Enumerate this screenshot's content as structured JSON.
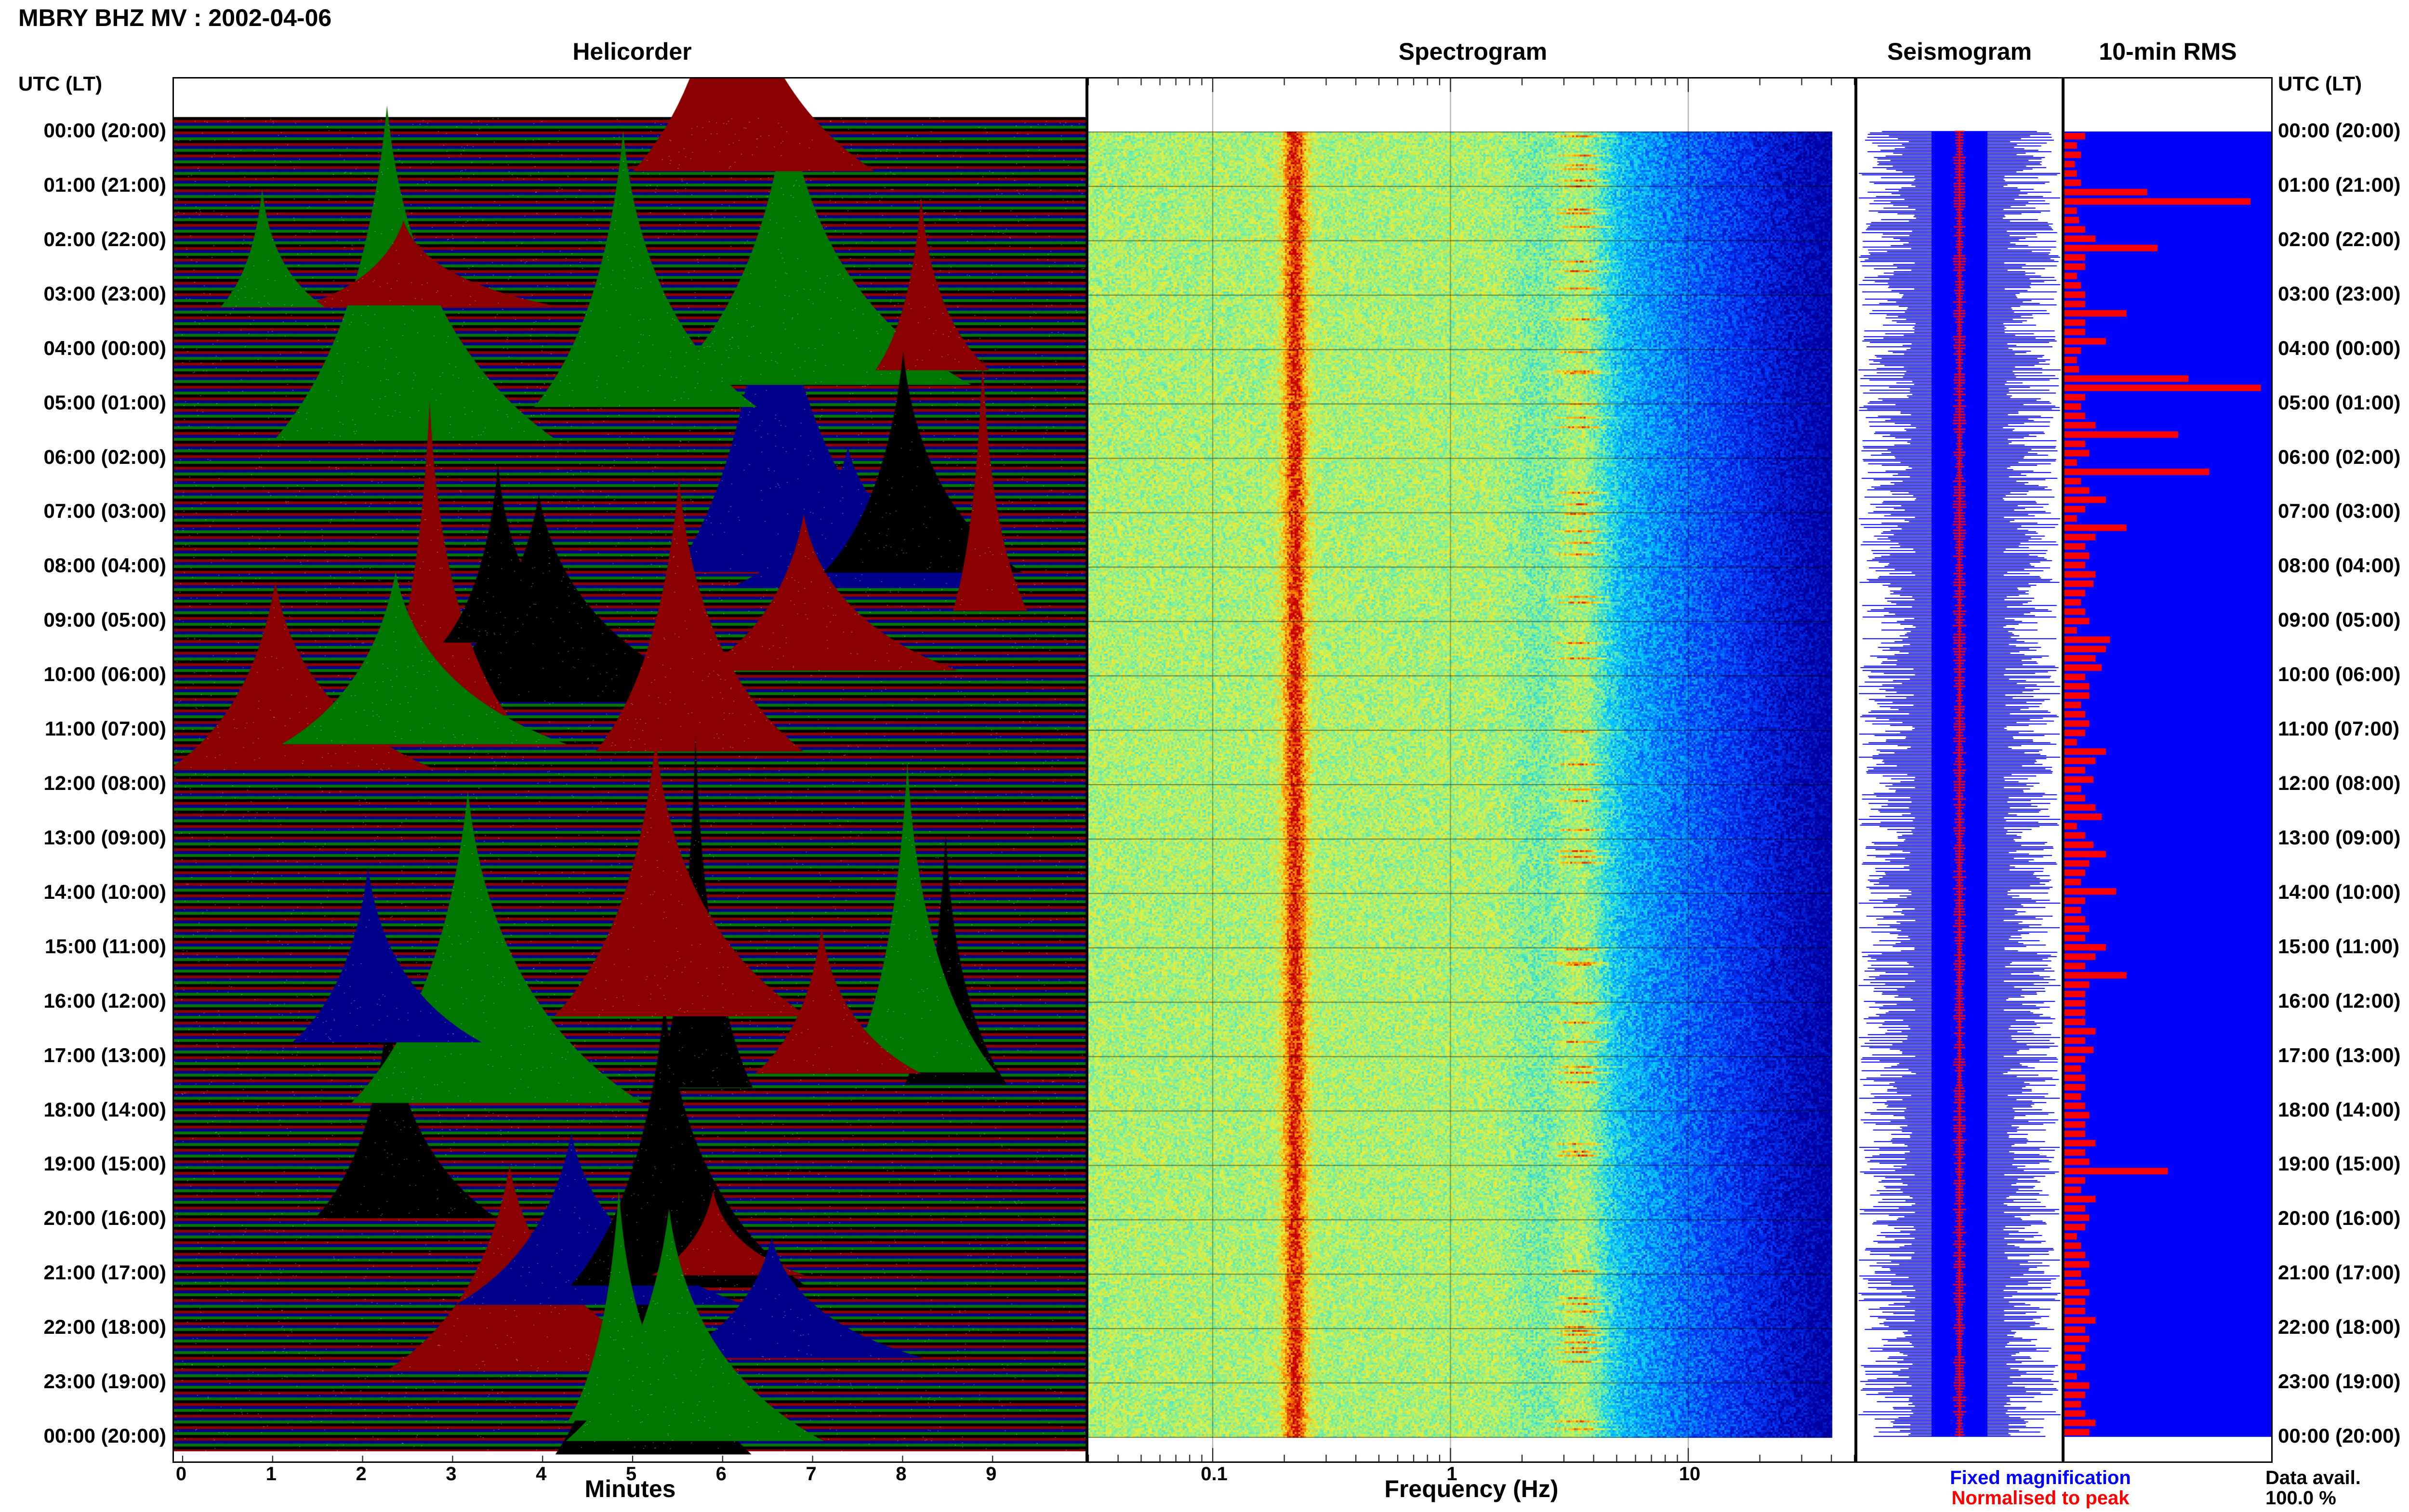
{
  "header": {
    "title": "MBRY BHZ MV : 2002-04-06"
  },
  "panels": {
    "helicorder": "Helicorder",
    "spectrogram": "Spectrogram",
    "seismogram": "Seismogram",
    "rms": "10-min RMS"
  },
  "axis_header_left": "UTC (LT)",
  "axis_header_right": "UTC (LT)",
  "legend": {
    "fixed": "Fixed magnification",
    "normalised": "Normalised to peak",
    "fixed_color": "#0000ff",
    "normalised_color": "#ff0000",
    "data_avail_label": "Data avail.",
    "data_avail_value": "100.0 %"
  },
  "chart_data": [
    {
      "type": "heatmap",
      "title": "Helicorder",
      "xlabel": "Minutes",
      "x_ticks": [
        "0",
        "1",
        "2",
        "3",
        "4",
        "5",
        "6",
        "7",
        "8",
        "9"
      ],
      "xlim": [
        0,
        10
      ],
      "row_labels": [
        "00:00 (20:00)",
        "01:00 (21:00)",
        "02:00 (22:00)",
        "03:00 (23:00)",
        "04:00 (00:00)",
        "05:00 (01:00)",
        "06:00 (02:00)",
        "07:00 (03:00)",
        "08:00 (04:00)",
        "09:00 (05:00)",
        "10:00 (06:00)",
        "11:00 (07:00)",
        "12:00 (08:00)",
        "13:00 (09:00)",
        "14:00 (10:00)",
        "15:00 (11:00)",
        "16:00 (12:00)",
        "17:00 (13:00)",
        "18:00 (14:00)",
        "19:00 (15:00)",
        "20:00 (16:00)",
        "21:00 (17:00)",
        "22:00 (18:00)",
        "23:00 (19:00)",
        "00:00 (20:00)"
      ],
      "trace_colors": [
        "#000000",
        "#8b0000",
        "#00008b",
        "#007700"
      ]
    },
    {
      "type": "heatmap",
      "title": "Spectrogram",
      "xlabel": "Frequency (Hz)",
      "x_scale": "log",
      "x_ticks": [
        "0.1",
        "1",
        "10"
      ],
      "xlim": [
        0.03,
        50
      ],
      "peak_bands_hz": [
        0.22,
        3.5
      ]
    },
    {
      "type": "line",
      "title": "Seismogram",
      "series": [
        {
          "name": "Fixed magnification",
          "color": "#0000ff"
        },
        {
          "name": "Normalised to peak",
          "color": "#ff0000"
        }
      ]
    },
    {
      "type": "bar",
      "title": "10-min RMS",
      "orientation": "horizontal",
      "bar_color": "#ff0000",
      "background_color": "#0000ff",
      "values": [
        0.1,
        0.06,
        0.08,
        0.05,
        0.06,
        0.08,
        0.4,
        0.9,
        0.06,
        0.07,
        0.1,
        0.15,
        0.45,
        0.1,
        0.1,
        0.06,
        0.08,
        0.1,
        0.1,
        0.3,
        0.1,
        0.1,
        0.2,
        0.08,
        0.06,
        0.07,
        0.6,
        0.95,
        0.1,
        0.08,
        0.1,
        0.15,
        0.55,
        0.1,
        0.12,
        0.06,
        0.7,
        0.08,
        0.12,
        0.2,
        0.1,
        0.06,
        0.3,
        0.15,
        0.1,
        0.12,
        0.1,
        0.15,
        0.14,
        0.1,
        0.08,
        0.1,
        0.12,
        0.06,
        0.22,
        0.2,
        0.15,
        0.18,
        0.1,
        0.12,
        0.12,
        0.08,
        0.1,
        0.12,
        0.1,
        0.06,
        0.2,
        0.15,
        0.1,
        0.14,
        0.08,
        0.1,
        0.15,
        0.18,
        0.06,
        0.1,
        0.14,
        0.2,
        0.12,
        0.1,
        0.08,
        0.25,
        0.1,
        0.08,
        0.1,
        0.12,
        0.1,
        0.2,
        0.15,
        0.1,
        0.3,
        0.12,
        0.1,
        0.1,
        0.1,
        0.1,
        0.15,
        0.1,
        0.14,
        0.1,
        0.08,
        0.1,
        0.1,
        0.08,
        0.1,
        0.12,
        0.1,
        0.1,
        0.15,
        0.1,
        0.12,
        0.5,
        0.1,
        0.08,
        0.15,
        0.1,
        0.12,
        0.1,
        0.06,
        0.08,
        0.1,
        0.12,
        0.08,
        0.1,
        0.12,
        0.1,
        0.1,
        0.15,
        0.1,
        0.12,
        0.1,
        0.08,
        0.1,
        0.06,
        0.12,
        0.1,
        0.08,
        0.1,
        0.15,
        0.12
      ]
    }
  ]
}
